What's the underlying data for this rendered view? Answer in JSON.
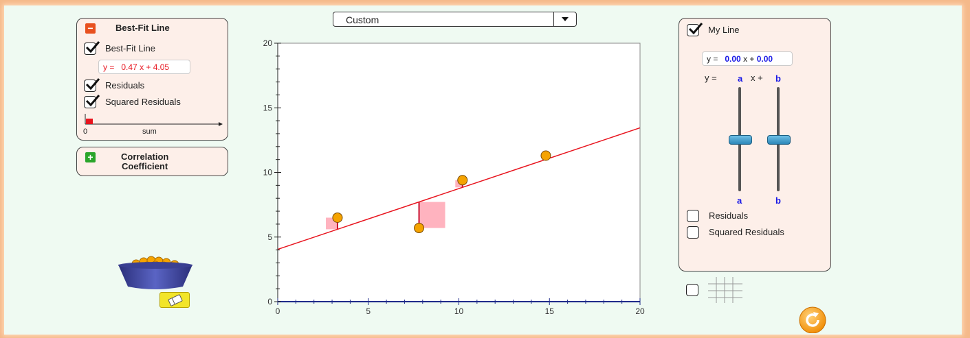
{
  "best_fit_panel": {
    "title": "Best-Fit Line",
    "toggle_symbol": "−",
    "best_fit_label": "Best-Fit Line",
    "equation": {
      "prefix": "y =",
      "a": "0.47",
      "x": "x +",
      "b": "4.05"
    },
    "residuals_label": "Residuals",
    "squared_residuals_label": "Squared Residuals",
    "sum_axis_zero": "0",
    "sum_axis_label": "sum",
    "best_fit_checked": true,
    "residuals_checked": true,
    "squared_checked": true
  },
  "correlation_panel": {
    "toggle_symbol": "+",
    "title_line1": "Correlation",
    "title_line2": "Coefficient"
  },
  "preset_dropdown": {
    "value": "Custom"
  },
  "chart_data": {
    "type": "scatter",
    "x_range": [
      0,
      20
    ],
    "y_range": [
      0,
      20
    ],
    "x_ticks": [
      "0",
      "5",
      "10",
      "15",
      "20"
    ],
    "y_ticks": [
      "0",
      "5",
      "10",
      "15",
      "20"
    ],
    "points": [
      {
        "x": 3.3,
        "y": 6.5
      },
      {
        "x": 7.8,
        "y": 5.7
      },
      {
        "x": 10.2,
        "y": 9.4
      },
      {
        "x": 14.8,
        "y": 11.3
      }
    ],
    "best_fit": {
      "slope": 0.47,
      "intercept": 4.05,
      "color": "#e8141e"
    },
    "point_color": "#f5a300",
    "residual_square_color": "#ffb3bf",
    "residual_line_color": "#c8102e",
    "axis_color": "#1f2a8a"
  },
  "my_line_panel": {
    "my_line_label": "My Line",
    "my_line_checked": true,
    "equation": {
      "prefix": "y =",
      "a": "0.00",
      "x": "x +",
      "b": "0.00"
    },
    "slider_header": {
      "prefix": "y =",
      "a": "a",
      "x": "x +",
      "b": "b"
    },
    "slider_a_label": "a",
    "slider_b_label": "b",
    "slider_a_level": 0.5,
    "slider_b_level": 0.5,
    "residuals_label": "Residuals",
    "squared_residuals_label": "Squared Residuals"
  },
  "grid_toggle": {
    "icon": "grid-icon",
    "checked": false
  },
  "tools": {
    "bowl": "bowl-of-points-icon",
    "eraser": "eraser-icon",
    "reset": "reset-icon"
  },
  "colors": {
    "accent_blue": "#1a1ae6",
    "red": "#e8141e"
  }
}
